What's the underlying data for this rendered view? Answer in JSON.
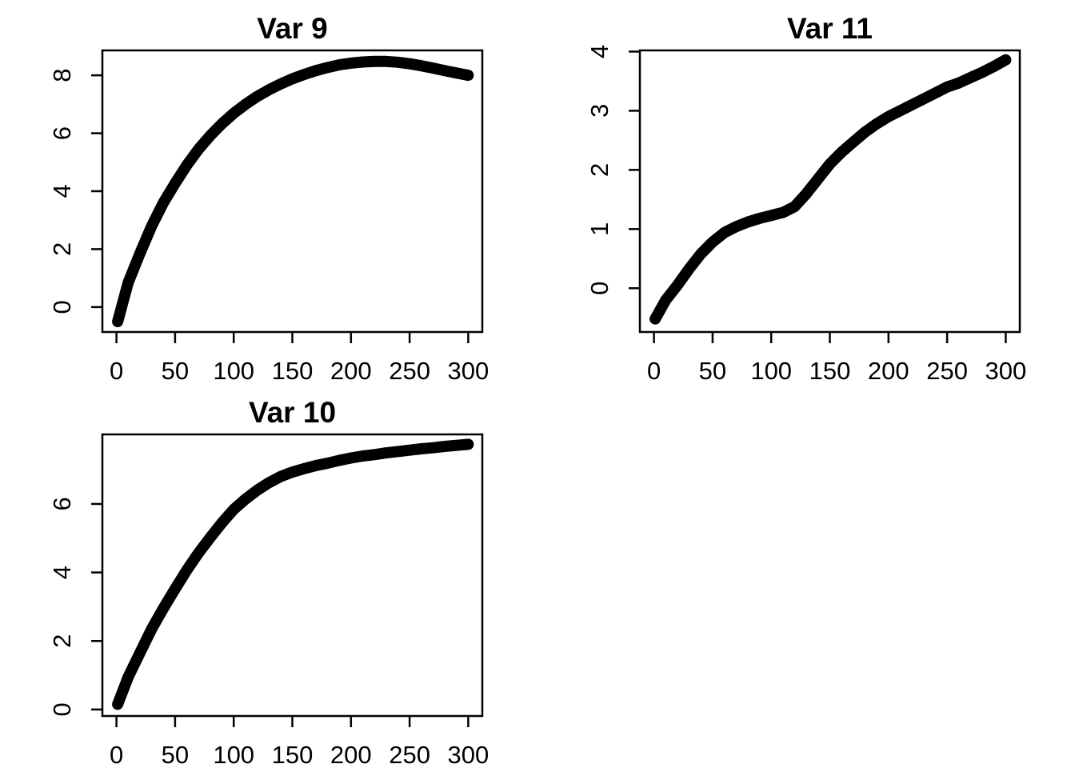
{
  "figure": {
    "background": "#ffffff",
    "foreground": "#000000",
    "grid_rows": 2,
    "grid_cols": 2,
    "empty_cell": "bottom-right"
  },
  "chart_data": [
    {
      "type": "scatter",
      "title": "Var 9",
      "position": "top-left",
      "xlabel": "",
      "ylabel": "",
      "grid": false,
      "legend": "none",
      "marker": "thick-black-point-line",
      "color": "#000000",
      "xlim": [
        -12,
        312
      ],
      "ylim": [
        -0.86,
        8.86
      ],
      "xticks": [
        0,
        50,
        100,
        150,
        200,
        250,
        300
      ],
      "yticks": [
        0,
        2,
        4,
        6,
        8
      ],
      "x": [
        1,
        10,
        20,
        30,
        40,
        50,
        60,
        70,
        80,
        90,
        100,
        110,
        120,
        130,
        140,
        150,
        160,
        170,
        180,
        190,
        200,
        210,
        220,
        230,
        240,
        250,
        260,
        270,
        280,
        290,
        300
      ],
      "y": [
        -0.5,
        0.85,
        1.85,
        2.8,
        3.6,
        4.27,
        4.9,
        5.45,
        5.92,
        6.33,
        6.69,
        7.0,
        7.27,
        7.5,
        7.7,
        7.88,
        8.03,
        8.16,
        8.27,
        8.36,
        8.42,
        8.46,
        8.48,
        8.48,
        8.45,
        8.4,
        8.33,
        8.25,
        8.16,
        8.08,
        8.0
      ]
    },
    {
      "type": "scatter",
      "title": "Var 11",
      "position": "top-right",
      "xlabel": "",
      "ylabel": "",
      "grid": false,
      "legend": "none",
      "marker": "thick-black-point-line",
      "color": "#000000",
      "xlim": [
        -12,
        312
      ],
      "ylim": [
        -0.74,
        4.02
      ],
      "xticks": [
        0,
        50,
        100,
        150,
        200,
        250,
        300
      ],
      "yticks": [
        0,
        1,
        2,
        3,
        4
      ],
      "x": [
        1,
        10,
        20,
        30,
        40,
        50,
        60,
        70,
        80,
        90,
        100,
        110,
        120,
        130,
        140,
        150,
        160,
        170,
        180,
        190,
        200,
        210,
        220,
        230,
        240,
        250,
        260,
        270,
        280,
        290,
        300
      ],
      "y": [
        -0.52,
        -0.2,
        0.05,
        0.33,
        0.58,
        0.78,
        0.94,
        1.04,
        1.12,
        1.18,
        1.23,
        1.28,
        1.38,
        1.6,
        1.85,
        2.1,
        2.3,
        2.47,
        2.64,
        2.78,
        2.9,
        3.0,
        3.1,
        3.2,
        3.3,
        3.4,
        3.47,
        3.56,
        3.65,
        3.75,
        3.86
      ]
    },
    {
      "type": "scatter",
      "title": "Var 10",
      "position": "bottom-left",
      "xlabel": "",
      "ylabel": "",
      "grid": false,
      "legend": "none",
      "marker": "thick-black-point-line",
      "color": "#000000",
      "xlim": [
        -12,
        312
      ],
      "ylim": [
        -0.19,
        8.03
      ],
      "xticks": [
        0,
        50,
        100,
        150,
        200,
        250,
        300
      ],
      "yticks": [
        0,
        2,
        4,
        6
      ],
      "x": [
        1,
        10,
        20,
        30,
        40,
        50,
        60,
        70,
        80,
        90,
        100,
        110,
        120,
        130,
        140,
        150,
        160,
        170,
        180,
        190,
        200,
        210,
        220,
        230,
        240,
        250,
        260,
        270,
        280,
        290,
        300
      ],
      "y": [
        0.15,
        0.95,
        1.65,
        2.35,
        2.95,
        3.52,
        4.07,
        4.57,
        5.02,
        5.45,
        5.84,
        6.14,
        6.4,
        6.62,
        6.8,
        6.93,
        7.03,
        7.12,
        7.19,
        7.27,
        7.34,
        7.4,
        7.44,
        7.49,
        7.53,
        7.57,
        7.61,
        7.64,
        7.68,
        7.71,
        7.74
      ]
    }
  ]
}
